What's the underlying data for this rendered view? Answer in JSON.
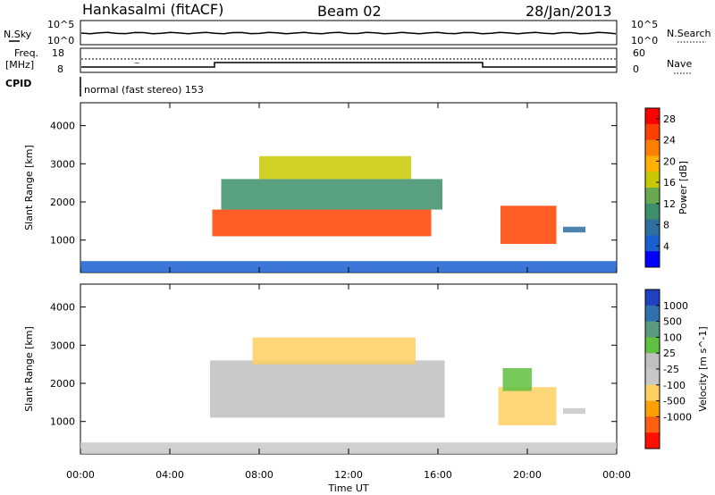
{
  "header": {
    "station": "Hankasalmi (fitACF)",
    "beam": "Beam 02",
    "date": "28/Jan/2013"
  },
  "summary_panel": {
    "nsky_label": "N.Sky",
    "nsky_scale_top": "10^5",
    "nsky_scale_bottom": "10^0",
    "nsearch_label": "N.Search",
    "nsearch_scale_top": "10^5",
    "nsearch_scale_bottom": "10^0",
    "freq_label_line1": "Freq.",
    "freq_label_line2": "[MHz]",
    "freq_top": "18",
    "freq_bottom": "8",
    "nave_label": "Nave",
    "nave_top": "60",
    "nave_bottom": "0",
    "cpid_label": "CPID",
    "cpid_text": "normal (fast stereo) 153"
  },
  "colors": {
    "power_scale": [
      "#0000ff",
      "#1a5fd0",
      "#2f6f9f",
      "#3c8f6a",
      "#6aa84f",
      "#c8c800",
      "#ffb000",
      "#ff7f00",
      "#ff4000",
      "#ff0000"
    ],
    "velocity_scale": [
      "#2040c0",
      "#3070b0",
      "#5a9a80",
      "#60c040",
      "#c0c0c0",
      "#c8c8c8",
      "#ffd060",
      "#ffa000",
      "#ff6010",
      "#ff1000"
    ]
  },
  "chart_data": [
    {
      "type": "heatmap",
      "title": "",
      "xlabel": "Time UT",
      "ylabel": "Slant Range [km]",
      "xlim": [
        "00:00",
        "24:00"
      ],
      "ylim": [
        150,
        4600
      ],
      "x_ticks": [
        "00:00",
        "04:00",
        "08:00",
        "12:00",
        "16:00",
        "20:00",
        "00:00"
      ],
      "y_ticks": [
        1000,
        2000,
        3000,
        4000
      ],
      "colorbar_label": "Power [dB]",
      "colorbar_ticks": [
        4,
        8,
        12,
        16,
        20,
        24,
        28
      ],
      "colorbar_range": [
        0,
        30
      ],
      "patches": [
        {
          "t0": 5.9,
          "t1": 15.7,
          "r0": 1100,
          "r1": 1800,
          "value": 26
        },
        {
          "t0": 6.3,
          "t1": 16.2,
          "r0": 1800,
          "r1": 2600,
          "value": 9
        },
        {
          "t0": 8.0,
          "t1": 14.8,
          "r0": 2600,
          "r1": 3200,
          "value": 16
        },
        {
          "t0": 18.8,
          "t1": 21.3,
          "r0": 900,
          "r1": 1900,
          "value": 24
        },
        {
          "t0": 21.6,
          "t1": 22.6,
          "r0": 1200,
          "r1": 1350,
          "value": 6
        },
        {
          "t0": 0.0,
          "t1": 24.0,
          "r0": 150,
          "r1": 450,
          "value": 5
        }
      ]
    },
    {
      "type": "heatmap",
      "title": "",
      "xlabel": "Time UT",
      "ylabel": "Slant Range [km]",
      "xlim": [
        "00:00",
        "24:00"
      ],
      "ylim": [
        150,
        4600
      ],
      "x_ticks": [
        "00:00",
        "04:00",
        "08:00",
        "12:00",
        "16:00",
        "20:00",
        "00:00"
      ],
      "y_ticks": [
        1000,
        2000,
        3000,
        4000
      ],
      "colorbar_label": "Velocity [m s^-1]",
      "colorbar_ticks": [
        1000,
        500,
        100,
        25,
        -25,
        -100,
        -500,
        -1000
      ],
      "colorbar_range": [
        -1200,
        1200
      ],
      "patches": [
        {
          "t0": 5.8,
          "t1": 16.3,
          "r0": 1100,
          "r1": 2600,
          "value": 0
        },
        {
          "t0": 7.7,
          "t1": 15.0,
          "r0": 2500,
          "r1": 3200,
          "value": -400
        },
        {
          "t0": 18.7,
          "t1": 21.3,
          "r0": 900,
          "r1": 1900,
          "value": -450
        },
        {
          "t0": 18.9,
          "t1": 20.2,
          "r0": 1800,
          "r1": 2400,
          "value": 300
        },
        {
          "t0": 21.6,
          "t1": 22.6,
          "r0": 1200,
          "r1": 1350,
          "value": -80
        },
        {
          "t0": 0.0,
          "t1": 24.0,
          "r0": 150,
          "r1": 450,
          "value": -90
        }
      ]
    }
  ]
}
